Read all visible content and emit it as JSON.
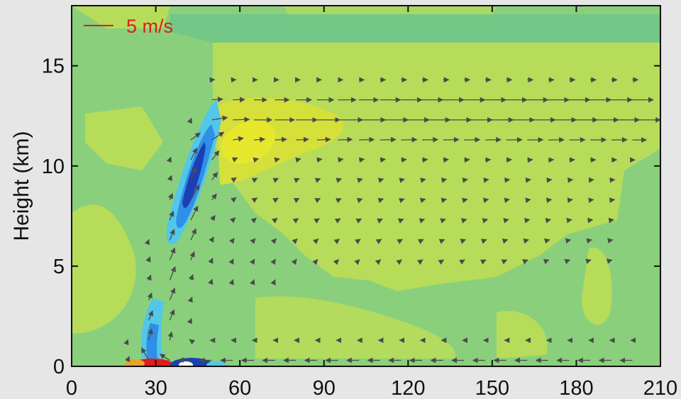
{
  "chart_data": {
    "type": "heatmap",
    "subtype": "filled-contour-with-wind-vectors",
    "title": "",
    "xlabel": "",
    "ylabel": "Height (km)",
    "xlim": [
      0,
      210
    ],
    "ylim": [
      0,
      18
    ],
    "x_ticks": [
      "0",
      "30",
      "60",
      "90",
      "120",
      "150",
      "180",
      "210"
    ],
    "y_ticks": [
      "0",
      "5",
      "10",
      "15"
    ],
    "grid": false,
    "vector_scale": {
      "label": "5 m/s",
      "magnitude": 5,
      "color": "#d62020"
    },
    "colors": {
      "background": "#8ad07c",
      "light_green": "#b7dc5a",
      "teal_green": "#6fc58a",
      "yellow": "#e7e72e",
      "blue_dark": "#1c3fb5",
      "blue_mid": "#2f8fe8",
      "blue_light": "#53c7e8",
      "red": "#e01b1b",
      "arrow": "#4a4a4a"
    },
    "features": [
      {
        "name": "negative-anomaly",
        "x": 42,
        "z": 9,
        "sign": "negative"
      },
      {
        "name": "positive-anomaly",
        "x": 67,
        "z": 11,
        "sign": "positive"
      },
      {
        "name": "surface-positive",
        "x": 28,
        "z": 0,
        "sign": "positive"
      },
      {
        "name": "surface-negative",
        "x": 41,
        "z": 0,
        "sign": "negative"
      }
    ],
    "outflow_levels_km": [
      11,
      12,
      13,
      14
    ]
  }
}
